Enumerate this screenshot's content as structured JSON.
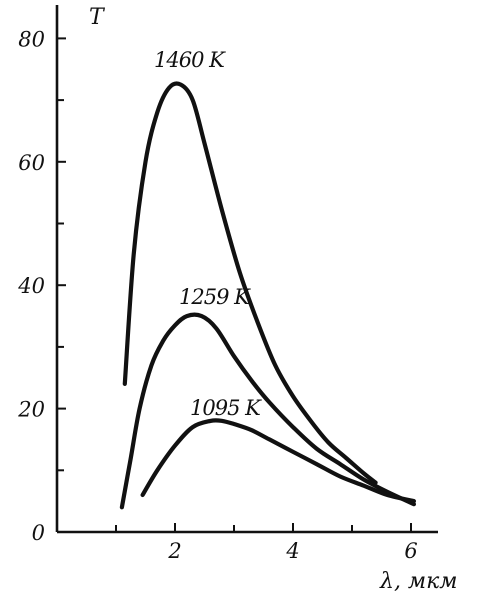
{
  "chart_data": {
    "type": "line",
    "xlabel": "λ, мкм",
    "ylabel": "T",
    "xlim": [
      0,
      6.1
    ],
    "ylim": [
      0,
      85
    ],
    "x_ticks": [
      2,
      4,
      6
    ],
    "y_ticks": [
      0,
      20,
      40,
      60,
      80
    ],
    "x_minor_ticks": [
      1,
      3,
      5
    ],
    "y_minor_ticks": [
      10,
      30,
      50,
      70
    ],
    "grid": false,
    "series": [
      {
        "name": "1460 K",
        "x": [
          1.15,
          1.3,
          1.5,
          1.7,
          1.9,
          2.1,
          2.3,
          2.5,
          2.8,
          3.1,
          3.4,
          3.7,
          4.0,
          4.3,
          4.6,
          4.9,
          5.2,
          5.4
        ],
        "y": [
          24,
          45,
          60,
          68,
          72,
          72.5,
          70,
          63,
          52,
          42,
          34,
          27,
          22,
          18,
          14.5,
          12,
          9.5,
          8
        ]
      },
      {
        "name": "1259 K",
        "x": [
          1.1,
          1.25,
          1.4,
          1.6,
          1.8,
          2.0,
          2.2,
          2.45,
          2.7,
          3.0,
          3.3,
          3.6,
          4.0,
          4.4,
          4.8,
          5.2,
          5.6,
          6.05
        ],
        "y": [
          4,
          12,
          20,
          27,
          31,
          33.5,
          35,
          35,
          33,
          28.5,
          24.5,
          21,
          17,
          13.5,
          11,
          8.5,
          6.5,
          4.5
        ]
      },
      {
        "name": "1095 K",
        "x": [
          1.45,
          1.7,
          2.0,
          2.3,
          2.6,
          2.8,
          3.0,
          3.3,
          3.6,
          4.0,
          4.4,
          4.8,
          5.2,
          5.6,
          6.05
        ],
        "y": [
          6,
          10,
          14,
          17,
          18,
          18,
          17.5,
          16.5,
          15,
          13,
          11,
          9,
          7.5,
          6,
          5
        ]
      }
    ]
  }
}
